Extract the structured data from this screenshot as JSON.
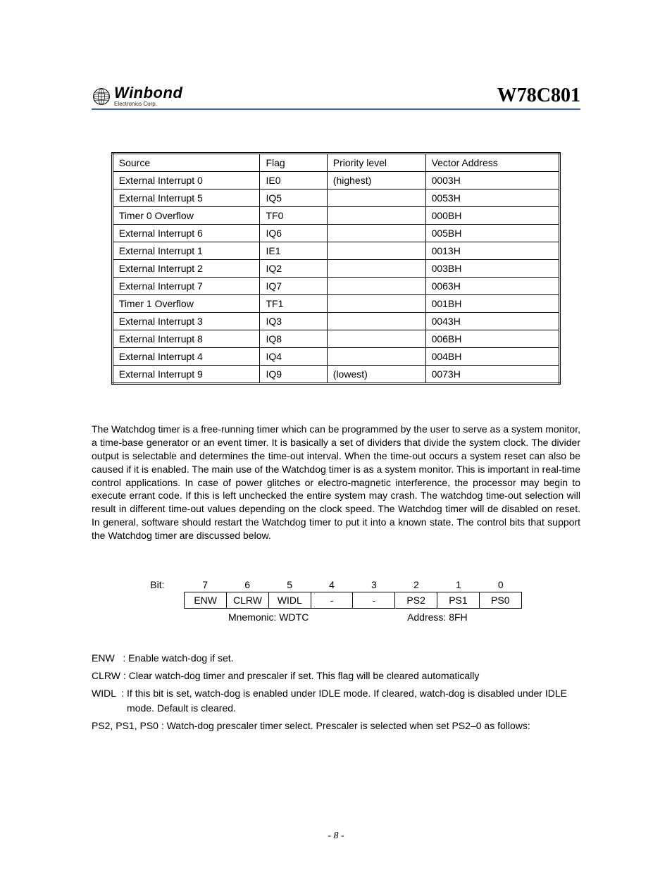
{
  "header": {
    "brand": "Winbond",
    "subbrand": "Electronics Corp.",
    "part_number": "W78C801"
  },
  "interrupt_table": {
    "columns": [
      "Source",
      "Flag",
      "Priority level",
      "Vector Address"
    ],
    "rows": [
      [
        "External Interrupt 0",
        "IE0",
        "(highest)",
        "0003H"
      ],
      [
        "External Interrupt 5",
        "IQ5",
        "",
        "0053H"
      ],
      [
        "Timer 0 Overflow",
        "TF0",
        "",
        "000BH"
      ],
      [
        "External Interrupt 6",
        "IQ6",
        "",
        "005BH"
      ],
      [
        "External Interrupt 1",
        "IE1",
        "",
        "0013H"
      ],
      [
        "External Interrupt 2",
        "IQ2",
        "",
        "003BH"
      ],
      [
        "External Interrupt 7",
        "IQ7",
        "",
        "0063H"
      ],
      [
        "Timer 1 Overflow",
        "TF1",
        "",
        "001BH"
      ],
      [
        "External Interrupt 3",
        "IQ3",
        "",
        "0043H"
      ],
      [
        "External Interrupt 8",
        "IQ8",
        "",
        "006BH"
      ],
      [
        "External Interrupt 4",
        "IQ4",
        "",
        "004BH"
      ],
      [
        "External Interrupt 9",
        "IQ9",
        "(lowest)",
        "0073H"
      ]
    ],
    "col_widths_pct": [
      33,
      15,
      22,
      30
    ]
  },
  "watchdog_paragraph": "The Watchdog timer is a free-running timer which can be programmed by the user to serve as a system monitor, a time-base generator or an event timer. It is basically a set of dividers that  divide the system clock. The divider output is selectable and determines the time-out interval. When the time-out occurs a system reset can also be caused if it is enabled. The main use of the Watchdog timer is as a system monitor. This is important in real-time control applications. In case of power glitches or electro-magnetic interference, the processor may begin to execute errant code. If this is left unchecked the entire system may crash. The watchdog time-out selection will result in different time-out values depending on the clock speed. The Watchdog timer will de disabled on reset. In general, software should restart the Watchdog timer to put it into a known state. The control bits that support the Watchdog timer are discussed below.",
  "register": {
    "label": "Bit:",
    "bit_numbers": [
      "7",
      "6",
      "5",
      "4",
      "3",
      "2",
      "1",
      "0"
    ],
    "cells": [
      "ENW",
      "CLRW",
      "WIDL",
      "-",
      "-",
      "PS2",
      "PS1",
      "PS0"
    ],
    "mnemonic": "Mnemonic: WDTC",
    "address": "Address: 8FH"
  },
  "definitions": [
    {
      "term": "ENW   : ",
      "body": "Enable watch-dog if set."
    },
    {
      "term": "CLRW : ",
      "body": "Clear watch-dog timer and prescaler if set. This flag will be cleared automatically"
    },
    {
      "term": "WIDL  : ",
      "body": "If this bit is set, watch-dog is enabled under IDLE mode. If cleared, watch-dog is disabled under IDLE mode. Default is cleared."
    },
    {
      "term": "",
      "body": "PS2, PS1, PS0 : Watch-dog prescaler timer select. Prescaler is selected when set PS2–0 as follows:"
    }
  ],
  "footer": "- 8 -",
  "colors": {
    "header_rule": "#3a5fa8",
    "text": "#000000",
    "background": "#ffffff"
  }
}
